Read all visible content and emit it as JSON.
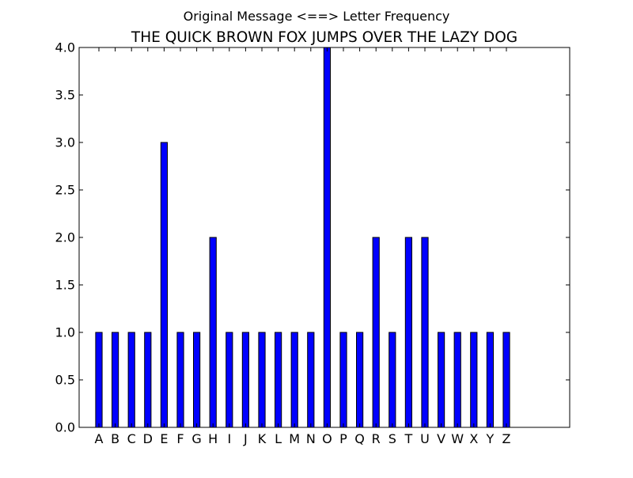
{
  "figure": {
    "suptitle": "Original Message <==> Letter Frequency"
  },
  "chart_data": {
    "type": "bar",
    "title": "THE QUICK BROWN FOX JUMPS OVER THE LAZY DOG",
    "xlabel": "",
    "ylabel": "",
    "categories": [
      "A",
      "B",
      "C",
      "D",
      "E",
      "F",
      "G",
      "H",
      "I",
      "J",
      "K",
      "L",
      "M",
      "N",
      "O",
      "P",
      "Q",
      "R",
      "S",
      "T",
      "U",
      "V",
      "W",
      "X",
      "Y",
      "Z"
    ],
    "values": [
      1,
      1,
      1,
      1,
      3,
      1,
      1,
      2,
      1,
      1,
      1,
      1,
      1,
      1,
      4,
      1,
      1,
      2,
      1,
      2,
      2,
      1,
      1,
      1,
      1,
      1
    ],
    "ylim": [
      0,
      4
    ],
    "yticks": [
      "0.0",
      "0.5",
      "1.0",
      "1.5",
      "2.0",
      "2.5",
      "3.0",
      "3.5",
      "4.0"
    ],
    "grid": false,
    "bar_color": "#0000ff",
    "edge_color": "#000000"
  }
}
